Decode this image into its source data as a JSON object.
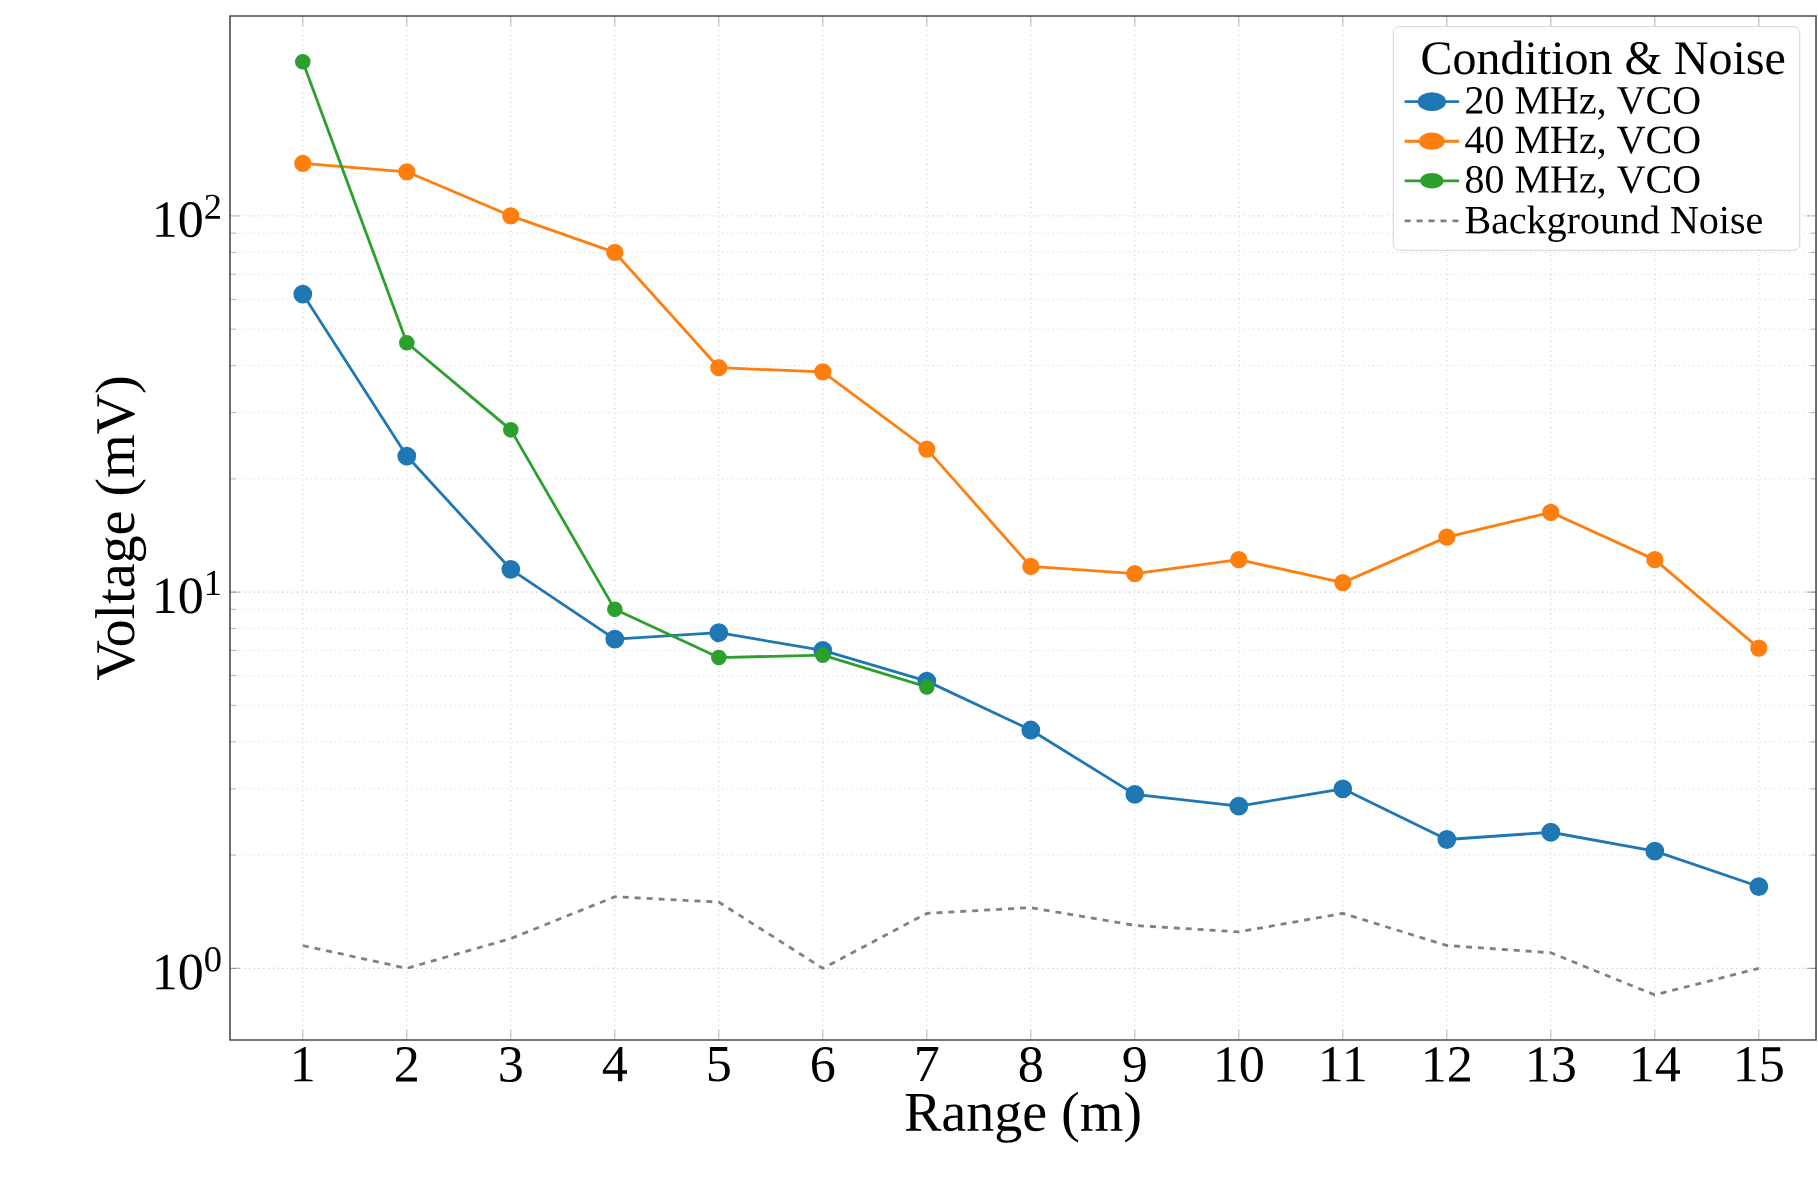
{
  "chart_data": {
    "type": "line",
    "xlabel": "Range (m)",
    "ylabel": "Voltage (mV)",
    "legend_title": "Condition & Noise",
    "log": "y",
    "grid": true,
    "legend": "top right",
    "x": [
      1,
      2,
      3,
      4,
      5,
      6,
      7,
      8,
      9,
      10,
      11,
      12,
      13,
      14,
      15
    ],
    "xlim": [
      0.3,
      15.55
    ],
    "xticks": [
      1,
      2,
      3,
      4,
      5,
      6,
      7,
      8,
      9,
      10,
      11,
      12,
      13,
      14,
      15
    ],
    "ylim": [
      0.645,
      340
    ],
    "yticks": [
      {
        "value": 1,
        "label": "10$^{0}$"
      },
      {
        "value": 10,
        "label": "10$^{1}$"
      },
      {
        "value": 100,
        "label": "10$^{2}$"
      }
    ],
    "series": [
      {
        "name": "20 MHz, VCO",
        "color": "#1f77b4",
        "marker": "circle",
        "line_style": "solid",
        "values": [
          62,
          23,
          11.5,
          7.5,
          7.8,
          7.0,
          5.8,
          4.3,
          2.9,
          2.7,
          3.0,
          2.2,
          2.3,
          2.05,
          1.65
        ]
      },
      {
        "name": "40 MHz, VCO",
        "color": "#ff7f0e",
        "marker": "circle",
        "line_style": "solid",
        "values": [
          138,
          131,
          100,
          80,
          39.5,
          38.5,
          24,
          11.7,
          11.2,
          12.2,
          10.6,
          14,
          16.3,
          12.2,
          7.1
        ]
      },
      {
        "name": "80 MHz, VCO",
        "color": "#2ca02c",
        "marker": "circle",
        "line_style": "solid",
        "values": [
          257,
          46,
          27,
          9.0,
          6.7,
          6.8,
          5.6,
          null,
          null,
          null,
          null,
          null,
          null,
          null,
          null
        ]
      },
      {
        "name": "Background Noise",
        "color": "#808080",
        "marker": "none",
        "line_style": "dashed",
        "values": [
          1.15,
          1.0,
          1.2,
          1.55,
          1.5,
          1.0,
          1.4,
          1.45,
          1.3,
          1.25,
          1.4,
          1.15,
          1.1,
          0.85,
          1.0
        ]
      }
    ]
  }
}
